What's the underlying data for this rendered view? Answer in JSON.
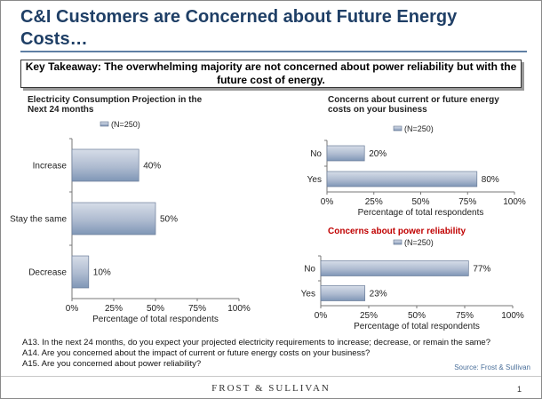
{
  "slide": {
    "title": "C&I Customers are Concerned about Future Energy Costs…",
    "takeaway": "Key Takeaway: The overwhelming majority are not concerned about power reliability but with the future cost of energy.",
    "footnotes": [
      "A13. In the next 24 months, do you expect your projected electricity requirements to increase; decrease, or remain the same?",
      "A14. Are you concerned about the impact of current or future energy costs on your business?",
      "A15. Are you concerned about power reliability?"
    ],
    "source": "Source: Frost & Sullivan",
    "brand": "FROST & SULLIVAN",
    "page_number": "1",
    "colors": {
      "title": "#1f3f66",
      "bar_light": "#d6dde8",
      "bar_dark": "#7f96b6",
      "red_title": "#c00000"
    }
  },
  "chart_data": [
    {
      "type": "bar",
      "orientation": "horizontal",
      "title": "Electricity Consumption Projection in the Next 24 months",
      "legend": "(N=250)",
      "categories": [
        "Increase",
        "Stay the same",
        "Decrease"
      ],
      "series": [
        {
          "name": "(N=250)",
          "values": [
            40,
            50,
            10
          ]
        }
      ],
      "value_labels": [
        "40%",
        "50%",
        "10%"
      ],
      "xticks": [
        "0%",
        "25%",
        "50%",
        "75%",
        "100%"
      ],
      "xlabel": "Percentage of total respondents",
      "xlim": [
        0,
        100
      ]
    },
    {
      "type": "bar",
      "orientation": "horizontal",
      "title": "Concerns about current or future energy costs on your business",
      "legend": "(N=250)",
      "categories": [
        "No",
        "Yes"
      ],
      "series": [
        {
          "name": "(N=250)",
          "values": [
            20,
            80
          ]
        }
      ],
      "value_labels": [
        "20%",
        "80%"
      ],
      "xticks": [
        "0%",
        "25%",
        "50%",
        "75%",
        "100%"
      ],
      "xlabel": "Percentage of total respondents",
      "xlim": [
        0,
        100
      ]
    },
    {
      "type": "bar",
      "orientation": "horizontal",
      "title": "Concerns about power reliability",
      "legend": "(N=250)",
      "categories": [
        "No",
        "Yes"
      ],
      "series": [
        {
          "name": "(N=250)",
          "values": [
            77,
            23
          ]
        }
      ],
      "value_labels": [
        "77%",
        "23%"
      ],
      "xticks": [
        "0%",
        "25%",
        "50%",
        "75%",
        "100%"
      ],
      "xlabel": "Percentage of total respondents",
      "xlim": [
        0,
        100
      ]
    }
  ]
}
